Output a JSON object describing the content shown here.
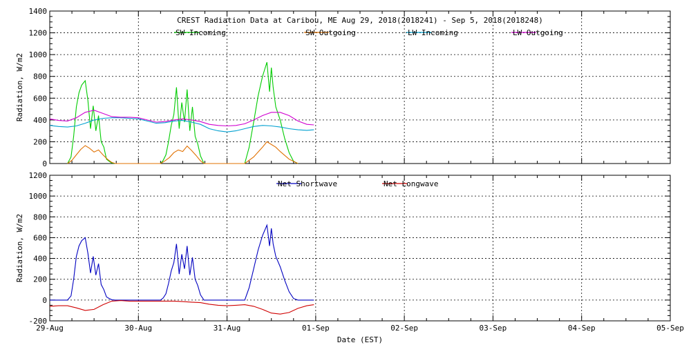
{
  "chart_data": [
    {
      "type": "line",
      "title": "CREST Radiation Data at Caribou, ME   Aug 29, 2018(2018241) - Sep  5, 2018(2018248)",
      "ylabel": "Radiation, W/m^2",
      "xlim": [
        "29-Aug",
        "05-Sep"
      ],
      "ylim": [
        0,
        1400
      ],
      "yticks": [
        "0",
        "200",
        "400",
        "600",
        "800",
        "1000",
        "1200",
        "1400"
      ],
      "grid": true,
      "legend": "top",
      "series": [
        {
          "name": "SW Incoming",
          "color": "#00cc00",
          "x": [
            0.2,
            0.24,
            0.27,
            0.3,
            0.33,
            0.36,
            0.4,
            0.43,
            0.46,
            0.49,
            0.52,
            0.55,
            0.58,
            0.61,
            0.64,
            0.67,
            0.7,
            0.74,
            1.25,
            1.28,
            1.31,
            1.34,
            1.37,
            1.4,
            1.43,
            1.46,
            1.49,
            1.52,
            1.55,
            1.58,
            1.61,
            1.64,
            1.67,
            1.7,
            1.74,
            2.2,
            2.25,
            2.3,
            2.35,
            2.4,
            2.45,
            2.48,
            2.5,
            2.52,
            2.55,
            2.6,
            2.65,
            2.7,
            2.75,
            2.8
          ],
          "y": [
            0,
            60,
            250,
            520,
            650,
            720,
            760,
            580,
            320,
            530,
            300,
            440,
            200,
            150,
            40,
            20,
            5,
            0,
            0,
            30,
            80,
            200,
            350,
            450,
            700,
            320,
            560,
            380,
            680,
            300,
            520,
            250,
            180,
            70,
            0,
            0,
            150,
            380,
            620,
            800,
            930,
            660,
            880,
            700,
            520,
            400,
            230,
            100,
            20,
            0
          ]
        },
        {
          "name": "SW Outgoing",
          "color": "#e07000",
          "x": [
            0.2,
            0.25,
            0.3,
            0.35,
            0.4,
            0.45,
            0.5,
            0.55,
            0.6,
            0.65,
            0.7,
            0.74,
            1.25,
            1.3,
            1.35,
            1.4,
            1.45,
            1.5,
            1.55,
            1.6,
            1.65,
            1.7,
            1.74,
            2.2,
            2.3,
            2.4,
            2.45,
            2.5,
            2.55,
            2.6,
            2.7,
            2.8
          ],
          "y": [
            0,
            30,
            80,
            130,
            165,
            140,
            105,
            125,
            80,
            40,
            10,
            0,
            0,
            25,
            55,
            100,
            125,
            110,
            160,
            120,
            75,
            25,
            0,
            0,
            60,
            150,
            200,
            175,
            150,
            110,
            40,
            0
          ]
        },
        {
          "name": "LW Incoming",
          "color": "#00a0d0",
          "x": [
            0,
            0.1,
            0.2,
            0.3,
            0.4,
            0.5,
            0.6,
            0.7,
            0.8,
            0.9,
            1.0,
            1.1,
            1.2,
            1.3,
            1.4,
            1.5,
            1.6,
            1.7,
            1.8,
            1.9,
            2.0,
            2.1,
            2.2,
            2.3,
            2.4,
            2.5,
            2.6,
            2.7,
            2.8,
            2.9,
            2.98
          ],
          "y": [
            350,
            340,
            335,
            345,
            370,
            400,
            415,
            420,
            420,
            415,
            410,
            390,
            370,
            375,
            390,
            395,
            380,
            360,
            320,
            300,
            290,
            300,
            320,
            340,
            350,
            345,
            335,
            320,
            310,
            305,
            310
          ]
        },
        {
          "name": "LW Outgoing",
          "color": "#d000d0",
          "x": [
            0,
            0.1,
            0.2,
            0.3,
            0.4,
            0.5,
            0.6,
            0.7,
            0.8,
            0.9,
            1.0,
            1.1,
            1.2,
            1.3,
            1.4,
            1.5,
            1.6,
            1.7,
            1.8,
            1.9,
            2.0,
            2.1,
            2.2,
            2.3,
            2.4,
            2.5,
            2.6,
            2.7,
            2.8,
            2.9,
            2.98
          ],
          "y": [
            410,
            395,
            390,
            420,
            470,
            490,
            460,
            430,
            425,
            425,
            420,
            400,
            380,
            385,
            400,
            410,
            400,
            385,
            360,
            350,
            345,
            350,
            365,
            400,
            440,
            470,
            470,
            440,
            390,
            360,
            355
          ]
        }
      ]
    },
    {
      "type": "line",
      "xlabel": "Date (EST)",
      "ylabel": "Radiation, W/m^2",
      "xlim": [
        "29-Aug",
        "05-Sep"
      ],
      "ylim": [
        -200,
        1200
      ],
      "yticks": [
        "-200",
        "0",
        "200",
        "400",
        "600",
        "800",
        "1000",
        "1200"
      ],
      "xticks": [
        "29-Aug",
        "30-Aug",
        "31-Aug",
        "01-Sep",
        "02-Sep",
        "03-Sep",
        "04-Sep",
        "05-Sep"
      ],
      "grid": true,
      "legend": "top",
      "series": [
        {
          "name": "Net Shortwave",
          "color": "#0000c0",
          "x": [
            0,
            0.2,
            0.24,
            0.27,
            0.3,
            0.33,
            0.36,
            0.4,
            0.43,
            0.46,
            0.49,
            0.52,
            0.55,
            0.58,
            0.61,
            0.64,
            0.67,
            0.7,
            0.74,
            1.0,
            1.25,
            1.28,
            1.31,
            1.34,
            1.37,
            1.4,
            1.43,
            1.46,
            1.49,
            1.52,
            1.55,
            1.58,
            1.61,
            1.64,
            1.67,
            1.7,
            1.74,
            2.0,
            2.2,
            2.25,
            2.3,
            2.35,
            2.4,
            2.45,
            2.48,
            2.5,
            2.52,
            2.55,
            2.6,
            2.65,
            2.7,
            2.75,
            2.8,
            2.98
          ],
          "y": [
            0,
            0,
            40,
            200,
            420,
            520,
            570,
            600,
            450,
            260,
            420,
            240,
            350,
            150,
            100,
            30,
            15,
            3,
            0,
            0,
            0,
            20,
            60,
            160,
            280,
            360,
            540,
            250,
            440,
            300,
            520,
            240,
            410,
            200,
            140,
            50,
            0,
            0,
            0,
            120,
            300,
            480,
            620,
            720,
            520,
            690,
            540,
            420,
            320,
            190,
            80,
            15,
            0,
            0
          ]
        },
        {
          "name": "Net Longwave",
          "color": "#d00000",
          "x": [
            0,
            0.1,
            0.2,
            0.3,
            0.4,
            0.5,
            0.6,
            0.7,
            0.8,
            0.9,
            1.0,
            1.1,
            1.2,
            1.3,
            1.4,
            1.5,
            1.6,
            1.7,
            1.8,
            1.9,
            2.0,
            2.1,
            2.2,
            2.3,
            2.4,
            2.5,
            2.6,
            2.7,
            2.8,
            2.9,
            2.98
          ],
          "y": [
            -60,
            -55,
            -55,
            -75,
            -100,
            -90,
            -45,
            -10,
            -5,
            -10,
            -10,
            -10,
            -10,
            -10,
            -10,
            -15,
            -20,
            -25,
            -40,
            -50,
            -55,
            -50,
            -45,
            -60,
            -90,
            -125,
            -135,
            -120,
            -80,
            -55,
            -45
          ]
        }
      ]
    }
  ]
}
